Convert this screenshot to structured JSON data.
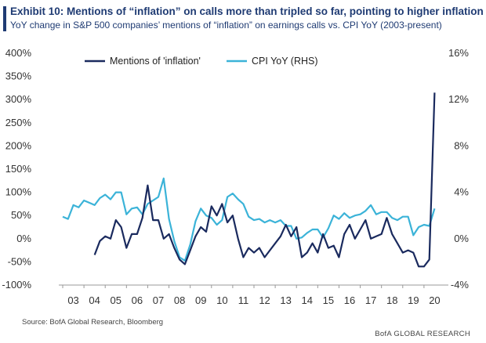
{
  "header": {
    "title": "Exhibit 10: Mentions of “inflation” on calls more than tripled so far, pointing to higher inflation",
    "subtitle": "YoY change in S&P 500 companies’ mentions of “inflation” on earnings calls vs. CPI YoY (2003-present)"
  },
  "footer": {
    "source": "Source:  BofA Global Research, Bloomberg",
    "brand": "BofA GLOBAL RESEARCH"
  },
  "colors": {
    "mentions": "#1a2a5e",
    "cpi": "#3bb3d8",
    "title": "#1f3b73"
  },
  "chart_data": {
    "type": "line",
    "x_tick_labels": [
      "03",
      "04",
      "05",
      "06",
      "07",
      "08",
      "09",
      "10",
      "11",
      "12",
      "13",
      "14",
      "15",
      "16",
      "17",
      "18",
      "19",
      "20"
    ],
    "xlim": [
      2003,
      2021
    ],
    "y_left": {
      "ylim": [
        -100,
        400
      ],
      "ticks": [
        -100,
        -50,
        0,
        50,
        100,
        150,
        200,
        250,
        300,
        350,
        400
      ],
      "tick_labels": [
        "-100%",
        "-50%",
        "0%",
        "50%",
        "100%",
        "150%",
        "200%",
        "250%",
        "300%",
        "350%",
        "400%"
      ]
    },
    "y_right": {
      "ylim": [
        -4,
        16
      ],
      "ticks": [
        -4,
        0,
        4,
        8,
        12,
        16
      ],
      "tick_labels": [
        "-4%",
        "0%",
        "4%",
        "8%",
        "12%",
        "16%"
      ]
    },
    "legend_position": "top",
    "series": [
      {
        "name": "Mentions of 'inflation'",
        "axis": "left",
        "x": [
          2004.5,
          2004.75,
          2005.0,
          2005.25,
          2005.5,
          2005.75,
          2006.0,
          2006.25,
          2006.5,
          2006.75,
          2007.0,
          2007.25,
          2007.5,
          2007.75,
          2008.0,
          2008.25,
          2008.5,
          2008.75,
          2009.0,
          2009.25,
          2009.5,
          2009.75,
          2010.0,
          2010.25,
          2010.5,
          2010.75,
          2011.0,
          2011.25,
          2011.5,
          2011.75,
          2012.0,
          2012.25,
          2012.5,
          2012.75,
          2013.0,
          2013.25,
          2013.5,
          2013.75,
          2014.0,
          2014.25,
          2014.5,
          2014.75,
          2015.0,
          2015.25,
          2015.5,
          2015.75,
          2016.0,
          2016.25,
          2016.5,
          2016.75,
          2017.0,
          2017.25,
          2017.5,
          2017.75,
          2018.0,
          2018.25,
          2018.5,
          2018.75,
          2019.0,
          2019.25,
          2019.5,
          2019.75,
          2020.0,
          2020.25,
          2020.5
        ],
        "values": [
          -35,
          -5,
          5,
          0,
          40,
          25,
          -20,
          10,
          10,
          45,
          115,
          40,
          40,
          0,
          10,
          -20,
          -45,
          -55,
          -25,
          5,
          25,
          15,
          70,
          50,
          75,
          35,
          50,
          0,
          -40,
          -20,
          -30,
          -20,
          -40,
          -25,
          -10,
          5,
          30,
          5,
          25,
          -40,
          -30,
          -10,
          -30,
          10,
          -20,
          -15,
          -40,
          10,
          30,
          0,
          20,
          40,
          0,
          5,
          10,
          45,
          10,
          -10,
          -30,
          -25,
          -30,
          -60,
          -60,
          -45,
          315
        ]
      },
      {
        "name": "CPI YoY (RHS)",
        "axis": "right",
        "x": [
          2003.0,
          2003.25,
          2003.5,
          2003.75,
          2004.0,
          2004.25,
          2004.5,
          2004.75,
          2005.0,
          2005.25,
          2005.5,
          2005.75,
          2006.0,
          2006.25,
          2006.5,
          2006.75,
          2007.0,
          2007.25,
          2007.5,
          2007.75,
          2008.0,
          2008.25,
          2008.5,
          2008.75,
          2009.0,
          2009.25,
          2009.5,
          2009.75,
          2010.0,
          2010.25,
          2010.5,
          2010.75,
          2011.0,
          2011.25,
          2011.5,
          2011.75,
          2012.0,
          2012.25,
          2012.5,
          2012.75,
          2013.0,
          2013.25,
          2013.5,
          2013.75,
          2014.0,
          2014.25,
          2014.5,
          2014.75,
          2015.0,
          2015.25,
          2015.5,
          2015.75,
          2016.0,
          2016.25,
          2016.5,
          2016.75,
          2017.0,
          2017.25,
          2017.5,
          2017.75,
          2018.0,
          2018.25,
          2018.5,
          2018.75,
          2019.0,
          2019.25,
          2019.5,
          2019.75,
          2020.0,
          2020.25,
          2020.5
        ],
        "values": [
          1.9,
          1.7,
          2.9,
          2.7,
          3.3,
          3.1,
          2.9,
          3.5,
          3.8,
          3.4,
          4.0,
          4.0,
          2.1,
          2.6,
          2.7,
          2.1,
          3.0,
          3.3,
          3.6,
          5.2,
          1.7,
          -0.2,
          -1.6,
          -1.9,
          -0.5,
          1.5,
          2.6,
          2.0,
          1.8,
          1.2,
          1.6,
          3.6,
          3.9,
          3.4,
          3.0,
          1.9,
          1.6,
          1.7,
          1.4,
          1.6,
          1.4,
          1.6,
          1.1,
          1.1,
          0.0,
          0.1,
          0.5,
          0.8,
          0.8,
          0.1,
          0.9,
          2.0,
          1.7,
          2.2,
          1.8,
          2.0,
          2.1,
          2.4,
          2.9,
          2.1,
          2.3,
          2.3,
          1.8,
          1.6,
          1.9,
          1.9,
          0.3,
          1.0,
          1.2,
          1.1,
          2.6
        ]
      }
    ]
  }
}
